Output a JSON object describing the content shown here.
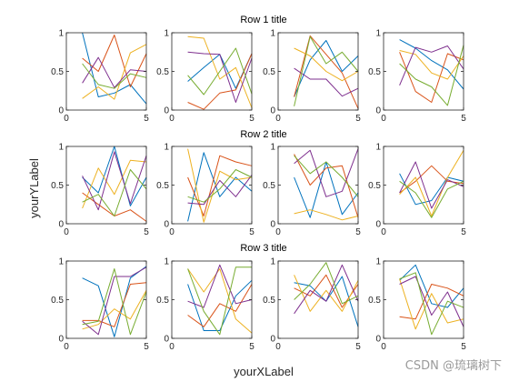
{
  "figure": {
    "xlabel": "yourXLabel",
    "ylabel": "yourYLabel",
    "watermark": "CSDN @琉璃树下",
    "row_titles": [
      "Row 1 title",
      "Row 2 title",
      "Row 3 title"
    ]
  },
  "colors": [
    "#0072BD",
    "#D95319",
    "#EDB120",
    "#7E2F8E",
    "#77AC30"
  ],
  "chart_data": [
    {
      "type": "line",
      "row": 1,
      "col": 1,
      "xlim": [
        0,
        5
      ],
      "ylim": [
        0,
        1
      ],
      "xticks": [
        0,
        5
      ],
      "yticks": [
        0,
        0.5,
        1
      ],
      "x": [
        1,
        2,
        3,
        4,
        5
      ],
      "series": [
        {
          "values": [
            1.0,
            0.17,
            0.22,
            0.33,
            0.08
          ]
        },
        {
          "values": [
            0.67,
            0.5,
            0.97,
            0.3,
            0.73
          ]
        },
        {
          "values": [
            0.15,
            0.3,
            0.14,
            0.74,
            0.85
          ]
        },
        {
          "values": [
            0.35,
            0.68,
            0.29,
            0.52,
            0.5
          ]
        },
        {
          "values": [
            0.6,
            0.33,
            0.28,
            0.47,
            0.42
          ]
        }
      ]
    },
    {
      "type": "line",
      "row": 1,
      "col": 2,
      "xlim": [
        0,
        5
      ],
      "ylim": [
        0,
        1
      ],
      "xticks": [
        0,
        5
      ],
      "yticks": [
        0,
        0.5,
        1
      ],
      "x": [
        1,
        2,
        3,
        4,
        5
      ],
      "series": [
        {
          "values": [
            0.37,
            0.55,
            0.72,
            0.28,
            0.73
          ]
        },
        {
          "values": [
            0.1,
            0.01,
            0.22,
            0.26,
            0.73
          ]
        },
        {
          "values": [
            0.95,
            0.93,
            0.4,
            0.55,
            0.03
          ]
        },
        {
          "values": [
            0.75,
            0.73,
            0.72,
            0.1,
            0.67
          ]
        },
        {
          "values": [
            0.45,
            0.2,
            0.5,
            0.8,
            0.21
          ]
        }
      ]
    },
    {
      "type": "line",
      "row": 1,
      "col": 3,
      "xlim": [
        0,
        5
      ],
      "ylim": [
        0,
        1
      ],
      "xticks": [
        0,
        5
      ],
      "yticks": [
        0,
        0.5,
        1
      ],
      "x": [
        1,
        2,
        3,
        4,
        5
      ],
      "series": [
        {
          "values": [
            0.17,
            0.65,
            0.9,
            0.5,
            0.7
          ]
        },
        {
          "values": [
            0.17,
            0.96,
            0.72,
            0.48,
            0.02
          ]
        },
        {
          "values": [
            0.8,
            0.7,
            0.5,
            0.38,
            0.5
          ]
        },
        {
          "values": [
            0.54,
            0.4,
            0.4,
            0.18,
            0.28
          ]
        },
        {
          "values": [
            0.05,
            0.95,
            0.6,
            0.75,
            0.5
          ]
        }
      ]
    },
    {
      "type": "line",
      "row": 1,
      "col": 4,
      "xlim": [
        0,
        5
      ],
      "ylim": [
        0,
        1
      ],
      "xticks": [
        0,
        5
      ],
      "yticks": [
        0,
        0.5,
        1
      ],
      "x": [
        1,
        2,
        3,
        4,
        5
      ],
      "series": [
        {
          "values": [
            0.91,
            0.8,
            0.64,
            0.52,
            0.27
          ]
        },
        {
          "values": [
            0.75,
            0.24,
            0.1,
            0.73,
            0.65
          ]
        },
        {
          "values": [
            0.77,
            0.72,
            0.48,
            0.4,
            0.7
          ]
        },
        {
          "values": [
            0.32,
            0.81,
            0.75,
            0.83,
            0.53
          ]
        },
        {
          "values": [
            0.6,
            0.4,
            0.3,
            0.06,
            0.84
          ]
        }
      ]
    },
    {
      "type": "line",
      "row": 2,
      "col": 1,
      "xlim": [
        0,
        5
      ],
      "ylim": [
        0,
        1
      ],
      "xticks": [
        0,
        5
      ],
      "yticks": [
        0,
        0.5,
        1
      ],
      "x": [
        1,
        2,
        3,
        4,
        5
      ],
      "series": [
        {
          "values": [
            0.6,
            0.4,
            1.0,
            0.23,
            0.6
          ]
        },
        {
          "values": [
            0.4,
            0.25,
            0.1,
            0.18,
            0.03
          ]
        },
        {
          "values": [
            0.2,
            0.72,
            0.38,
            0.82,
            0.8
          ]
        },
        {
          "values": [
            0.62,
            0.18,
            0.93,
            0.26,
            0.88
          ]
        },
        {
          "values": [
            0.28,
            0.38,
            0.1,
            0.7,
            0.45
          ]
        }
      ]
    },
    {
      "type": "line",
      "row": 2,
      "col": 2,
      "xlim": [
        0,
        5
      ],
      "ylim": [
        0,
        1
      ],
      "xticks": [
        0,
        5
      ],
      "yticks": [
        0,
        0.5,
        1
      ],
      "x": [
        1,
        2,
        3,
        4,
        5
      ],
      "series": [
        {
          "values": [
            0.03,
            0.92,
            0.35,
            0.6,
            0.42
          ]
        },
        {
          "values": [
            0.6,
            0.1,
            0.88,
            0.8,
            0.75
          ]
        },
        {
          "values": [
            0.97,
            0.02,
            0.68,
            0.57,
            0.6
          ]
        },
        {
          "values": [
            0.27,
            0.25,
            0.56,
            0.35,
            0.63
          ]
        },
        {
          "values": [
            0.35,
            0.28,
            0.45,
            0.7,
            0.6
          ]
        }
      ]
    },
    {
      "type": "line",
      "row": 2,
      "col": 3,
      "xlim": [
        0,
        5
      ],
      "ylim": [
        0,
        1
      ],
      "xticks": [
        0,
        5
      ],
      "yticks": [
        0,
        0.5,
        1
      ],
      "x": [
        1,
        2,
        3,
        4,
        5
      ],
      "series": [
        {
          "values": [
            0.6,
            0.08,
            0.8,
            0.12,
            0.4
          ]
        },
        {
          "values": [
            0.9,
            0.5,
            0.72,
            0.75,
            0.08
          ]
        },
        {
          "values": [
            0.13,
            0.18,
            0.12,
            0.05,
            0.1
          ]
        },
        {
          "values": [
            0.78,
            0.95,
            0.35,
            0.42,
            0.97
          ]
        },
        {
          "values": [
            0.88,
            0.65,
            0.8,
            0.6,
            0.35
          ]
        }
      ]
    },
    {
      "type": "line",
      "row": 2,
      "col": 4,
      "xlim": [
        0,
        5
      ],
      "ylim": [
        0,
        1
      ],
      "xticks": [
        0,
        5
      ],
      "yticks": [
        0,
        0.5,
        1
      ],
      "x": [
        1,
        2,
        3,
        4,
        5
      ],
      "series": [
        {
          "values": [
            0.65,
            0.25,
            0.3,
            0.6,
            0.55
          ]
        },
        {
          "values": [
            0.4,
            0.55,
            0.75,
            0.55,
            0.52
          ]
        },
        {
          "values": [
            0.38,
            0.6,
            0.1,
            0.6,
            0.95
          ]
        },
        {
          "values": [
            0.4,
            0.8,
            0.2,
            0.57,
            0.48
          ]
        },
        {
          "values": [
            0.55,
            0.4,
            0.08,
            0.45,
            0.55
          ]
        }
      ]
    },
    {
      "type": "line",
      "row": 3,
      "col": 1,
      "xlim": [
        0,
        5
      ],
      "ylim": [
        0,
        1
      ],
      "xticks": [
        0,
        5
      ],
      "yticks": [
        0,
        0.5,
        1
      ],
      "x": [
        1,
        2,
        3,
        4,
        5
      ],
      "series": [
        {
          "values": [
            0.78,
            0.68,
            0.02,
            0.78,
            0.93
          ]
        },
        {
          "values": [
            0.23,
            0.23,
            0.15,
            0.7,
            0.72
          ]
        },
        {
          "values": [
            0.12,
            0.18,
            0.38,
            0.25,
            0.62
          ]
        },
        {
          "values": [
            0.22,
            0.05,
            0.8,
            0.8,
            0.92
          ]
        },
        {
          "values": [
            0.18,
            0.22,
            0.9,
            0.05,
            0.6
          ]
        }
      ]
    },
    {
      "type": "line",
      "row": 3,
      "col": 2,
      "xlim": [
        0,
        5
      ],
      "ylim": [
        0,
        1
      ],
      "xticks": [
        0,
        5
      ],
      "yticks": [
        0,
        0.5,
        1
      ],
      "x": [
        1,
        2,
        3,
        4,
        5
      ],
      "series": [
        {
          "values": [
            0.7,
            0.1,
            0.1,
            0.55,
            0.75
          ]
        },
        {
          "values": [
            0.3,
            0.15,
            0.45,
            0.35,
            0.7
          ]
        },
        {
          "values": [
            0.9,
            0.6,
            0.9,
            0.25,
            0.07
          ]
        },
        {
          "values": [
            0.48,
            0.4,
            0.95,
            0.45,
            0.5
          ]
        },
        {
          "values": [
            0.9,
            0.35,
            0.05,
            0.92,
            0.92
          ]
        }
      ]
    },
    {
      "type": "line",
      "row": 3,
      "col": 3,
      "xlim": [
        0,
        5
      ],
      "ylim": [
        0,
        1
      ],
      "xticks": [
        0,
        5
      ],
      "yticks": [
        0,
        0.5,
        1
      ],
      "x": [
        1,
        2,
        3,
        4,
        5
      ],
      "series": [
        {
          "values": [
            0.72,
            0.68,
            0.48,
            0.8,
            0.15
          ]
        },
        {
          "values": [
            0.65,
            0.55,
            0.82,
            0.4,
            0.7
          ]
        },
        {
          "values": [
            0.82,
            0.35,
            0.62,
            0.35,
            0.75
          ]
        },
        {
          "values": [
            0.32,
            0.62,
            0.48,
            0.95,
            0.48
          ]
        },
        {
          "values": [
            0.5,
            0.7,
            0.98,
            0.45,
            0.55
          ]
        }
      ]
    },
    {
      "type": "line",
      "row": 3,
      "col": 4,
      "xlim": [
        0,
        5
      ],
      "ylim": [
        0,
        1
      ],
      "xticks": [
        0,
        5
      ],
      "yticks": [
        0,
        0.5,
        1
      ],
      "x": [
        1,
        2,
        3,
        4,
        5
      ],
      "series": [
        {
          "values": [
            0.75,
            0.95,
            0.45,
            0.4,
            0.65
          ]
        },
        {
          "values": [
            0.28,
            0.25,
            0.7,
            0.65,
            0.55
          ]
        },
        {
          "values": [
            0.77,
            0.12,
            0.58,
            0.2,
            0.25
          ]
        },
        {
          "values": [
            0.7,
            0.8,
            0.3,
            0.6,
            0.15
          ]
        },
        {
          "values": [
            0.77,
            0.85,
            0.05,
            0.48,
            0.4
          ]
        }
      ]
    }
  ]
}
